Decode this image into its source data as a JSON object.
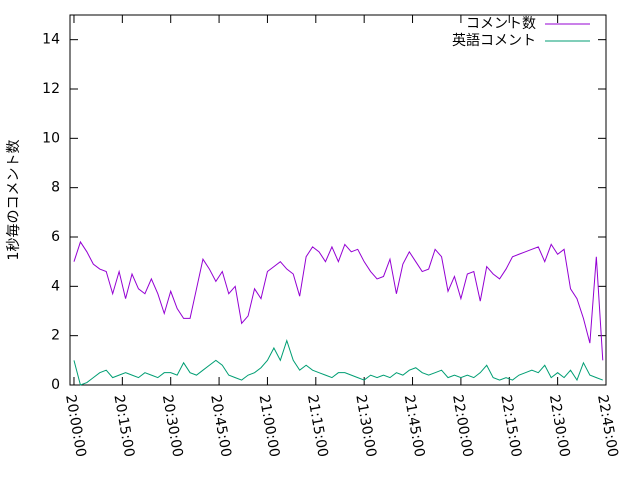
{
  "chart_data": {
    "type": "line",
    "ylabel": "1秒毎のコメント数",
    "x": [
      "20:00:00",
      "20:02:00",
      "20:04:00",
      "20:06:00",
      "20:08:00",
      "20:10:00",
      "20:12:00",
      "20:14:00",
      "20:16:00",
      "20:18:00",
      "20:20:00",
      "20:22:00",
      "20:24:00",
      "20:26:00",
      "20:28:00",
      "20:30:00",
      "20:32:00",
      "20:34:00",
      "20:36:00",
      "20:38:00",
      "20:40:00",
      "20:42:00",
      "20:44:00",
      "20:46:00",
      "20:48:00",
      "20:50:00",
      "20:52:00",
      "20:54:00",
      "20:56:00",
      "20:58:00",
      "21:00:00",
      "21:02:00",
      "21:04:00",
      "21:06:00",
      "21:08:00",
      "21:10:00",
      "21:12:00",
      "21:14:00",
      "21:16:00",
      "21:18:00",
      "21:20:00",
      "21:22:00",
      "21:24:00",
      "21:26:00",
      "21:28:00",
      "21:30:00",
      "21:32:00",
      "21:34:00",
      "21:36:00",
      "21:38:00",
      "21:40:00",
      "21:42:00",
      "21:44:00",
      "21:46:00",
      "21:48:00",
      "21:50:00",
      "21:52:00",
      "21:54:00",
      "21:56:00",
      "21:58:00",
      "22:00:00",
      "22:02:00",
      "22:04:00",
      "22:06:00",
      "22:08:00",
      "22:10:00",
      "22:12:00",
      "22:14:00",
      "22:16:00",
      "22:18:00",
      "22:20:00",
      "22:22:00",
      "22:24:00",
      "22:26:00",
      "22:28:00",
      "22:30:00",
      "22:32:00",
      "22:34:00",
      "22:36:00",
      "22:38:00",
      "22:40:00",
      "22:42:00",
      "22:44:00"
    ],
    "series": [
      {
        "name": "コメント数",
        "color": "#9400d3",
        "values": [
          5.0,
          5.8,
          5.4,
          4.9,
          4.7,
          4.6,
          3.7,
          4.6,
          3.5,
          4.5,
          3.9,
          3.7,
          4.3,
          3.7,
          2.9,
          3.8,
          3.1,
          2.7,
          2.7,
          3.9,
          5.1,
          4.7,
          4.2,
          4.6,
          3.7,
          4.0,
          2.5,
          2.8,
          3.9,
          3.5,
          4.6,
          4.8,
          5.0,
          4.7,
          4.5,
          3.6,
          5.2,
          5.6,
          5.4,
          5.0,
          5.6,
          5.0,
          5.7,
          5.4,
          5.5,
          5.0,
          4.6,
          4.3,
          4.4,
          5.1,
          3.7,
          4.9,
          5.4,
          5.0,
          4.6,
          4.7,
          5.5,
          5.2,
          3.8,
          4.4,
          3.5,
          4.5,
          4.6,
          3.4,
          4.8,
          4.5,
          4.3,
          4.7,
          5.2,
          5.3,
          5.4,
          5.5,
          5.6,
          5.0,
          5.7,
          5.3,
          5.5,
          3.9,
          3.5,
          2.7,
          1.7,
          5.2,
          1.0
        ]
      },
      {
        "name": "英語コメント",
        "color": "#009e73",
        "values": [
          1.0,
          0.0,
          0.1,
          0.3,
          0.5,
          0.6,
          0.3,
          0.4,
          0.5,
          0.4,
          0.3,
          0.5,
          0.4,
          0.3,
          0.5,
          0.5,
          0.4,
          0.9,
          0.5,
          0.4,
          0.6,
          0.8,
          1.0,
          0.8,
          0.4,
          0.3,
          0.2,
          0.4,
          0.5,
          0.7,
          1.0,
          1.5,
          1.0,
          1.8,
          1.0,
          0.6,
          0.8,
          0.6,
          0.5,
          0.4,
          0.3,
          0.5,
          0.5,
          0.4,
          0.3,
          0.2,
          0.4,
          0.3,
          0.4,
          0.3,
          0.5,
          0.4,
          0.6,
          0.7,
          0.5,
          0.4,
          0.5,
          0.6,
          0.3,
          0.4,
          0.3,
          0.4,
          0.3,
          0.5,
          0.8,
          0.3,
          0.2,
          0.3,
          0.2,
          0.4,
          0.5,
          0.6,
          0.5,
          0.8,
          0.3,
          0.5,
          0.3,
          0.6,
          0.2,
          0.9,
          0.4,
          0.3,
          0.2
        ]
      }
    ],
    "xlim": [
      "19:58:46",
      "22:45:00"
    ],
    "xticks": [
      "20:00:00",
      "20:15:00",
      "20:30:00",
      "20:45:00",
      "21:00:00",
      "21:15:00",
      "21:30:00",
      "21:45:00",
      "22:00:00",
      "22:15:00",
      "22:30:00",
      "22:45:00"
    ],
    "ylim": [
      0,
      15
    ],
    "yticks": [
      0,
      2,
      4,
      6,
      8,
      10,
      12,
      14
    ],
    "legend": "top-right"
  }
}
